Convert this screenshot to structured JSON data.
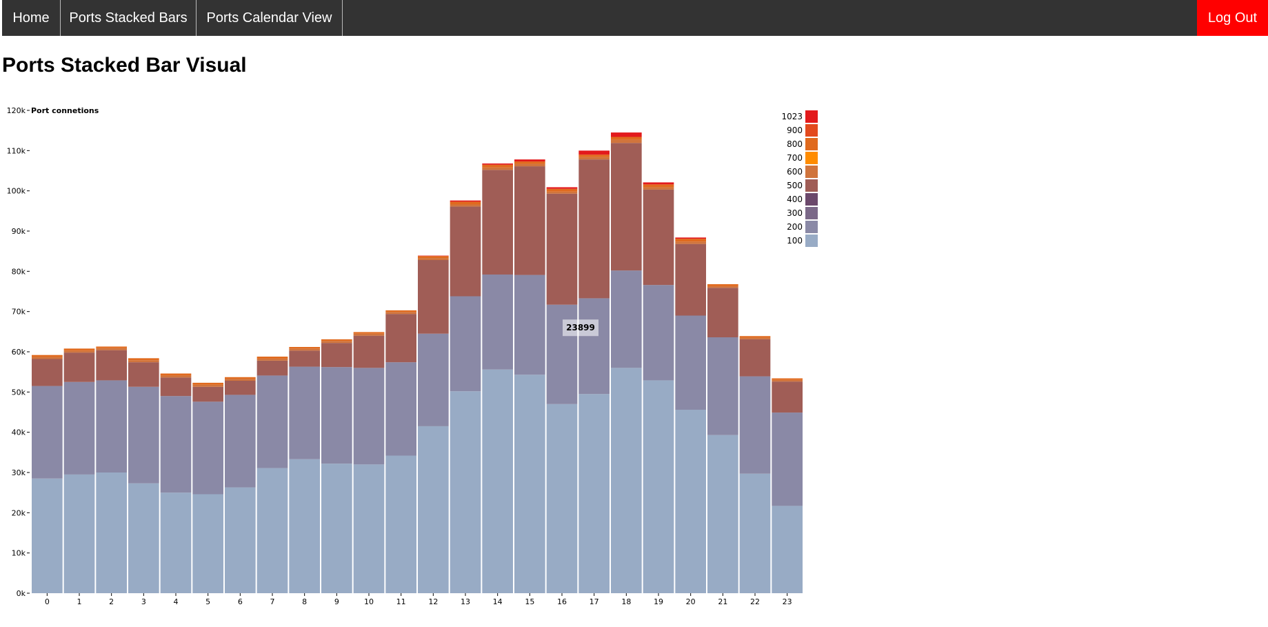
{
  "nav": {
    "home_label": "Home",
    "stacked_label": "Ports Stacked Bars",
    "calendar_label": "Ports Calendar View",
    "logout_label": "Log Out",
    "logout_color": "#ff0000"
  },
  "page_title": "Ports Stacked Bar Visual",
  "chart_data": {
    "type": "bar",
    "stacked": true,
    "title": "",
    "xlabel": "",
    "ylabel": "Port connetions",
    "ylim": [
      0,
      120000
    ],
    "y_ticks": [
      "0k",
      "10k",
      "20k",
      "30k",
      "40k",
      "50k",
      "60k",
      "70k",
      "80k",
      "90k",
      "100k",
      "110k",
      "120k"
    ],
    "categories": [
      "0",
      "1",
      "2",
      "3",
      "4",
      "5",
      "6",
      "7",
      "8",
      "9",
      "10",
      "11",
      "12",
      "13",
      "14",
      "15",
      "16",
      "17",
      "18",
      "19",
      "20",
      "21",
      "22",
      "23"
    ],
    "legend_position": "top-right",
    "tooltip": {
      "category": "16",
      "text": "23899"
    },
    "series": [
      {
        "name": "100",
        "color": "#98abc5",
        "values": [
          28500,
          29500,
          30000,
          27300,
          25000,
          24600,
          26300,
          31100,
          33300,
          32200,
          32000,
          34200,
          41500,
          50200,
          55600,
          54300,
          47000,
          49500,
          56000,
          52900,
          45600,
          39300,
          29700,
          21700
        ]
      },
      {
        "name": "200",
        "color": "#8a89a6",
        "values": [
          23000,
          23000,
          22900,
          24000,
          24000,
          23000,
          23000,
          23000,
          23000,
          24000,
          24000,
          23200,
          23000,
          23600,
          23600,
          24800,
          24700,
          23800,
          24200,
          23700,
          23400,
          24300,
          24200,
          23200
        ]
      },
      {
        "name": "300",
        "color": "#7b6888",
        "values": [
          0,
          0,
          0,
          0,
          0,
          0,
          0,
          0,
          0,
          0,
          0,
          0,
          0,
          0,
          0,
          0,
          0,
          0,
          0,
          0,
          0,
          0,
          0,
          0
        ]
      },
      {
        "name": "400",
        "color": "#6b486b",
        "values": [
          0,
          0,
          0,
          0,
          0,
          0,
          0,
          0,
          0,
          0,
          0,
          0,
          0,
          0,
          0,
          0,
          0,
          0,
          0,
          0,
          0,
          0,
          0,
          0
        ]
      },
      {
        "name": "500",
        "color": "#a05d56",
        "values": [
          6700,
          7300,
          7500,
          6100,
          4600,
          3700,
          3500,
          3700,
          4000,
          6000,
          8000,
          12000,
          18300,
          22300,
          26000,
          27000,
          27600,
          34500,
          31700,
          23700,
          17800,
          12300,
          9200,
          7700
        ]
      },
      {
        "name": "600",
        "color": "#d0743c",
        "values": [
          500,
          500,
          500,
          500,
          500,
          500,
          500,
          500,
          500,
          500,
          500,
          500,
          500,
          500,
          600,
          600,
          500,
          600,
          800,
          600,
          600,
          400,
          400,
          400
        ]
      },
      {
        "name": "700",
        "color": "#ff8c00",
        "values": [
          0,
          0,
          0,
          0,
          0,
          0,
          0,
          0,
          0,
          0,
          0,
          0,
          0,
          0,
          0,
          0,
          0,
          0,
          0,
          0,
          0,
          0,
          0,
          0
        ]
      },
      {
        "name": "800",
        "color": "#e06a1e",
        "values": [
          500,
          500,
          400,
          500,
          500,
          500,
          400,
          500,
          400,
          400,
          400,
          400,
          500,
          700,
          700,
          600,
          700,
          600,
          700,
          700,
          700,
          500,
          400,
          400
        ]
      },
      {
        "name": "900",
        "color": "#e34a1e",
        "values": [
          0,
          0,
          0,
          0,
          0,
          0,
          0,
          0,
          0,
          0,
          0,
          0,
          0,
          0,
          0,
          0,
          0,
          0,
          0,
          0,
          0,
          0,
          0,
          0
        ]
      },
      {
        "name": "1023",
        "color": "#e31a1c",
        "values": [
          0,
          0,
          0,
          0,
          0,
          0,
          0,
          0,
          0,
          0,
          0,
          0,
          100,
          300,
          300,
          500,
          400,
          1000,
          1100,
          500,
          300,
          0,
          0,
          0
        ]
      }
    ]
  }
}
